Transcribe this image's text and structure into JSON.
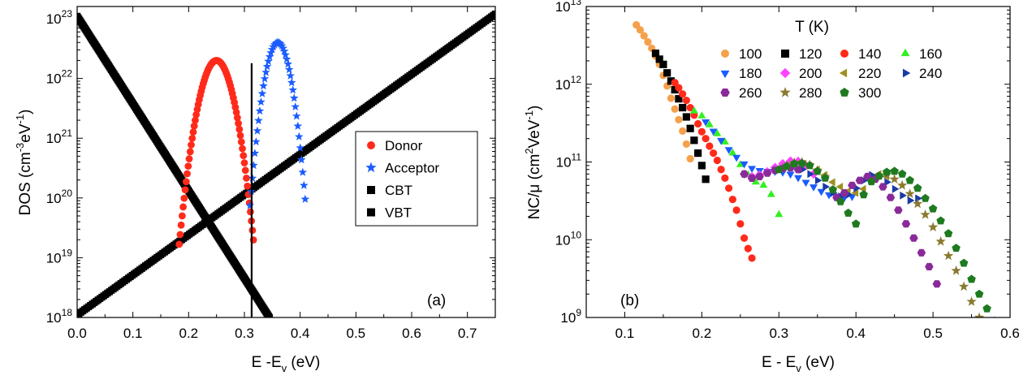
{
  "chart_data": [
    {
      "panel_label": "(a)",
      "type": "scatter",
      "xlabel": {
        "pre": "E -E",
        "sub": "v",
        "post": " (eV)"
      },
      "ylabel": {
        "pre": "DOS (cm",
        "sup1": "-3",
        "mid": "eV",
        "sup2": "-1",
        "post": ")"
      },
      "xlim": [
        0,
        0.75
      ],
      "ylim": [
        1e+18,
        1.6e+23
      ],
      "yscale": "log",
      "xticks": [
        "0.0",
        "0.1",
        "0.2",
        "0.3",
        "0.4",
        "0.5",
        "0.6",
        "0.7"
      ],
      "yticks_exp": [
        "18",
        "19",
        "20",
        "21",
        "22",
        "23"
      ],
      "legend_position": "right-middle",
      "series": [
        {
          "name": "Donor",
          "marker": "circle",
          "color": "#ff2a1a",
          "shape": "gaussian",
          "peak_x": 0.25,
          "peak_y": 2e+22,
          "sigma": 0.0178,
          "x_range": [
            0.183,
            0.317
          ]
        },
        {
          "name": "Acceptor",
          "marker": "star",
          "color": "#1a5cff",
          "shape": "gaussian",
          "peak_x": 0.36,
          "peak_y": 4e+22,
          "sigma": 0.0141,
          "x_range": [
            0.31,
            0.41
          ]
        },
        {
          "name": "CBT",
          "marker": "square",
          "color": "#000000",
          "shape": "exponential",
          "x": [
            0.0,
            0.75
          ],
          "y": [
            1.1e+18,
            1.2e+23
          ]
        },
        {
          "name": "VBT",
          "marker": "square",
          "color": "#000000",
          "shape": "exponential",
          "x": [
            0.0,
            0.345
          ],
          "y": [
            1.1e+23,
            1e+18
          ]
        }
      ],
      "vertical_line": {
        "x": 0.313,
        "y": [
          1e+18,
          1.8e+22
        ]
      }
    },
    {
      "panel_label": "(b)",
      "type": "scatter",
      "xlabel": {
        "pre": "E - E",
        "sub": "v",
        "post": " (eV)"
      },
      "ylabel": {
        "pre": "NC/μ (cm",
        "sup1": "2",
        "mid": "VeV",
        "sup2": "-1",
        "post": ")"
      },
      "xlim": [
        0.05,
        0.6
      ],
      "ylim": [
        1000000000.0,
        10000000000000.0
      ],
      "yscale": "log",
      "xticks": [
        "0.1",
        "0.2",
        "0.3",
        "0.4",
        "0.5",
        "0.6"
      ],
      "yticks_exp": [
        "9",
        "10",
        "11",
        "12",
        "13"
      ],
      "legend_title": "T (K)",
      "legend_position": "top-right",
      "series": [
        {
          "name": "100",
          "marker": "circle",
          "color": "#f5a04a",
          "x": [
            0.115,
            0.12,
            0.125,
            0.13,
            0.135,
            0.14,
            0.145,
            0.15,
            0.155,
            0.16,
            0.165,
            0.17,
            0.175,
            0.18,
            0.185
          ],
          "y": [
            5800000000000.0,
            5000000000000.0,
            4200000000000.0,
            3500000000000.0,
            2900000000000.0,
            2300000000000.0,
            1800000000000.0,
            1300000000000.0,
            950000000000.0,
            660000000000.0,
            480000000000.0,
            350000000000.0,
            250000000000.0,
            170000000000.0,
            110000000000.0
          ]
        },
        {
          "name": "120",
          "marker": "square",
          "color": "#000000",
          "x": [
            0.14,
            0.145,
            0.15,
            0.155,
            0.16,
            0.165,
            0.17,
            0.175,
            0.18,
            0.185,
            0.19,
            0.195,
            0.2,
            0.205
          ],
          "y": [
            2500000000000.0,
            2100000000000.0,
            1800000000000.0,
            1400000000000.0,
            1100000000000.0,
            850000000000.0,
            650000000000.0,
            500000000000.0,
            380000000000.0,
            270000000000.0,
            190000000000.0,
            130000000000.0,
            90000000000.0,
            60000000000.0
          ]
        },
        {
          "name": "140",
          "marker": "circle",
          "color": "#ff2a1a",
          "x": [
            0.165,
            0.17,
            0.175,
            0.18,
            0.185,
            0.19,
            0.195,
            0.2,
            0.205,
            0.21,
            0.215,
            0.22,
            0.225,
            0.23,
            0.235,
            0.24,
            0.245,
            0.25,
            0.255,
            0.26,
            0.265
          ],
          "y": [
            1050000000000.0,
            900000000000.0,
            750000000000.0,
            620000000000.0,
            500000000000.0,
            400000000000.0,
            310000000000.0,
            245000000000.0,
            200000000000.0,
            160000000000.0,
            130000000000.0,
            105000000000.0,
            80000000000.0,
            62000000000.0,
            46000000000.0,
            33000000000.0,
            24000000000.0,
            16000000000.0,
            10500000000.0,
            7700000000.0,
            5800000000.0
          ]
        },
        {
          "name": "160",
          "marker": "triangle-up",
          "color": "#33ee22",
          "x": [
            0.19,
            0.2,
            0.21,
            0.22,
            0.23,
            0.24,
            0.25,
            0.26,
            0.27,
            0.28,
            0.29,
            0.3
          ],
          "y": [
            450000000000.0,
            390000000000.0,
            300000000000.0,
            230000000000.0,
            180000000000.0,
            130000000000.0,
            92000000000.0,
            68000000000.0,
            55000000000.0,
            50000000000.0,
            38000000000.0,
            21000000000.0
          ]
        },
        {
          "name": "180",
          "marker": "triangle-down",
          "color": "#1a5cff",
          "x": [
            0.205,
            0.215,
            0.225,
            0.235,
            0.245,
            0.255,
            0.265,
            0.275,
            0.285,
            0.295,
            0.305,
            0.315,
            0.325,
            0.335,
            0.345,
            0.355,
            0.365,
            0.375,
            0.385,
            0.395
          ],
          "y": [
            330000000000.0,
            250000000000.0,
            190000000000.0,
            145000000000.0,
            115000000000.0,
            95000000000.0,
            83000000000.0,
            78000000000.0,
            76000000000.0,
            76000000000.0,
            74000000000.0,
            70000000000.0,
            63000000000.0,
            55000000000.0,
            48000000000.0,
            42000000000.0,
            38000000000.0,
            36000000000.0,
            35000000000.0,
            36000000000.0
          ]
        },
        {
          "name": "200",
          "marker": "diamond",
          "color": "#ff44ff",
          "x": [
            0.255,
            0.265,
            0.275,
            0.285,
            0.295,
            0.305,
            0.315,
            0.325,
            0.335,
            0.345
          ],
          "y": [
            70000000000.0,
            65000000000.0,
            68000000000.0,
            75000000000.0,
            85000000000.0,
            95000000000.0,
            103000000000.0,
            102000000000.0,
            90000000000.0,
            70000000000.0
          ]
        },
        {
          "name": "220",
          "marker": "triangle-left",
          "color": "#a09020",
          "x": [
            0.31,
            0.32,
            0.33,
            0.34,
            0.35,
            0.36,
            0.37,
            0.38,
            0.39,
            0.4,
            0.41,
            0.42,
            0.43,
            0.44
          ],
          "y": [
            90000000000.0,
            93000000000.0,
            95000000000.0,
            90000000000.0,
            80000000000.0,
            68000000000.0,
            55000000000.0,
            48000000000.0,
            42000000000.0,
            40000000000.0,
            45000000000.0,
            58000000000.0,
            70000000000.0,
            65000000000.0
          ]
        },
        {
          "name": "240",
          "marker": "triangle-right",
          "color": "#1a3aa8",
          "x": [
            0.33,
            0.34,
            0.35,
            0.36,
            0.37,
            0.38,
            0.39,
            0.4,
            0.41,
            0.42,
            0.43,
            0.44,
            0.45,
            0.46,
            0.47,
            0.48
          ],
          "y": [
            80000000000.0,
            70000000000.0,
            58000000000.0,
            48000000000.0,
            40000000000.0,
            36000000000.0,
            38000000000.0,
            46000000000.0,
            58000000000.0,
            68000000000.0,
            65000000000.0,
            55000000000.0,
            45000000000.0,
            37000000000.0,
            32000000000.0,
            34000000000.0
          ]
        },
        {
          "name": "260",
          "marker": "hexagon",
          "color": "#8a2a9a",
          "x": [
            0.255,
            0.265,
            0.275,
            0.285,
            0.295,
            0.305,
            0.315,
            0.325,
            0.375,
            0.385,
            0.395,
            0.405,
            0.415,
            0.425,
            0.435,
            0.445,
            0.455,
            0.465,
            0.475,
            0.485,
            0.495,
            0.505
          ],
          "y": [
            70000000000.0,
            62000000000.0,
            65000000000.0,
            72000000000.0,
            78000000000.0,
            82000000000.0,
            84000000000.0,
            80000000000.0,
            35000000000.0,
            40000000000.0,
            50000000000.0,
            58000000000.0,
            65000000000.0,
            60000000000.0,
            48000000000.0,
            35000000000.0,
            24000000000.0,
            16000000000.0,
            10500000000.0,
            6800000000.0,
            4500000000.0,
            2700000000.0
          ]
        },
        {
          "name": "280",
          "marker": "star",
          "color": "#8a7a30",
          "x": [
            0.31,
            0.32,
            0.33,
            0.34,
            0.35,
            0.36,
            0.44,
            0.45,
            0.46,
            0.47,
            0.48,
            0.49,
            0.5,
            0.51,
            0.52,
            0.53,
            0.54,
            0.55,
            0.56
          ],
          "y": [
            90000000000.0,
            98000000000.0,
            100000000000.0,
            92000000000.0,
            78000000000.0,
            65000000000.0,
            68000000000.0,
            60000000000.0,
            50000000000.0,
            39000000000.0,
            29000000000.0,
            21000000000.0,
            14500000000.0,
            9500000000.0,
            6200000000.0,
            4000000000.0,
            2500000000.0,
            1600000000.0,
            1000000000.0
          ]
        },
        {
          "name": "300",
          "marker": "pentagon",
          "color": "#1f7a1f",
          "x": [
            0.3,
            0.31,
            0.32,
            0.33,
            0.34,
            0.35,
            0.36,
            0.37,
            0.38,
            0.39,
            0.4,
            0.41,
            0.42,
            0.43,
            0.44,
            0.45,
            0.46,
            0.47,
            0.48,
            0.49,
            0.5,
            0.51,
            0.52,
            0.53,
            0.54,
            0.55,
            0.56,
            0.57,
            0.58
          ],
          "y": [
            80000000000.0,
            88000000000.0,
            95000000000.0,
            96000000000.0,
            90000000000.0,
            76000000000.0,
            62000000000.0,
            44000000000.0,
            31000000000.0,
            22000000000.0,
            16000000000.0,
            38000000000.0,
            56000000000.0,
            66000000000.0,
            74000000000.0,
            76000000000.0,
            70000000000.0,
            58000000000.0,
            46000000000.0,
            34000000000.0,
            25000000000.0,
            17500000000.0,
            12000000000.0,
            7800000000.0,
            5000000000.0,
            3100000000.0,
            2000000000.0,
            1300000000.0,
            900000000.0
          ]
        }
      ]
    }
  ]
}
